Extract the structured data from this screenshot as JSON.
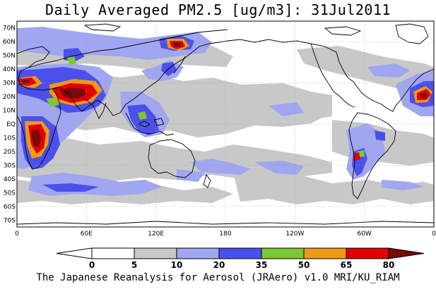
{
  "title": "Daily Averaged PM2.5 [ug/m3]: 31Jul2011",
  "footer": "The Japanese Reanalysis for Aerosol (JRAero) v1.0 MRI/KU_RIAM",
  "lat_labels": [
    "70N",
    "60N",
    "50N",
    "40N",
    "30N",
    "20N",
    "10N",
    "EQ",
    "10S",
    "20S",
    "30S",
    "40S",
    "50S",
    "60S",
    "70S"
  ],
  "lon_labels": [
    "0",
    "60E",
    "120E",
    "180",
    "120W",
    "60W",
    "0"
  ],
  "colorbar": {
    "levels": [
      "0",
      "5",
      "10",
      "20",
      "35",
      "50",
      "65",
      "80"
    ],
    "colors": [
      "#ffffff",
      "#c8c8c8",
      "#a0a6f0",
      "#4b50eb",
      "#7cc832",
      "#ef9a14",
      "#e30000",
      "#7a0a0a"
    ],
    "outline": "#000000"
  },
  "colors": {
    "land_outline": "#000000",
    "grid": "#9a9a9a"
  }
}
